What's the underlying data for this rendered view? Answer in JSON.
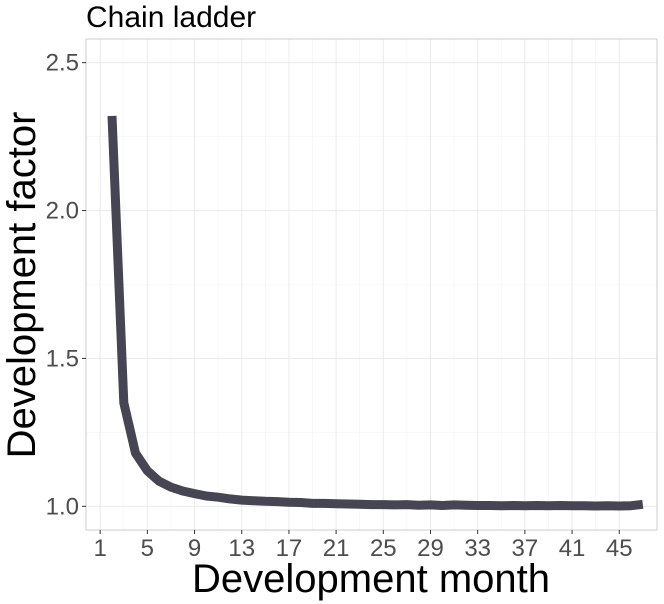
{
  "chart_data": {
    "type": "line",
    "title": "Chain ladder",
    "xlabel": "Development month",
    "ylabel": "Development factor",
    "xlim": [
      -0.2,
      48.2
    ],
    "ylim": [
      0.92,
      2.58
    ],
    "x_ticks": [
      1,
      5,
      9,
      13,
      17,
      21,
      25,
      29,
      33,
      37,
      41,
      45
    ],
    "y_ticks": [
      1.0,
      1.5,
      2.0,
      2.5
    ],
    "y_tick_labels": [
      "1.0",
      "1.5",
      "2.0",
      "2.5"
    ],
    "grid": true,
    "line_color": "#464554",
    "series": [
      {
        "x": [
          2,
          3,
          4,
          5,
          6,
          7,
          8,
          9,
          10,
          11,
          12,
          13,
          14,
          15,
          16,
          17,
          18,
          19,
          20,
          21,
          22,
          23,
          24,
          25,
          26,
          27,
          28,
          29,
          30,
          31,
          32,
          33,
          34,
          35,
          36,
          37,
          38,
          39,
          40,
          41,
          42,
          43,
          44,
          45,
          46,
          47
        ],
        "values": [
          2.32,
          1.35,
          1.18,
          1.12,
          1.085,
          1.065,
          1.052,
          1.043,
          1.035,
          1.031,
          1.025,
          1.021,
          1.019,
          1.017,
          1.016,
          1.014,
          1.013,
          1.01,
          1.01,
          1.009,
          1.008,
          1.007,
          1.006,
          1.006,
          1.005,
          1.006,
          1.004,
          1.005,
          1.003,
          1.005,
          1.004,
          1.003,
          1.003,
          1.002,
          1.003,
          1.002,
          1.003,
          1.002,
          1.003,
          1.002,
          1.002,
          1.001,
          1.002,
          1.001,
          1.002,
          1.007
        ]
      }
    ]
  }
}
